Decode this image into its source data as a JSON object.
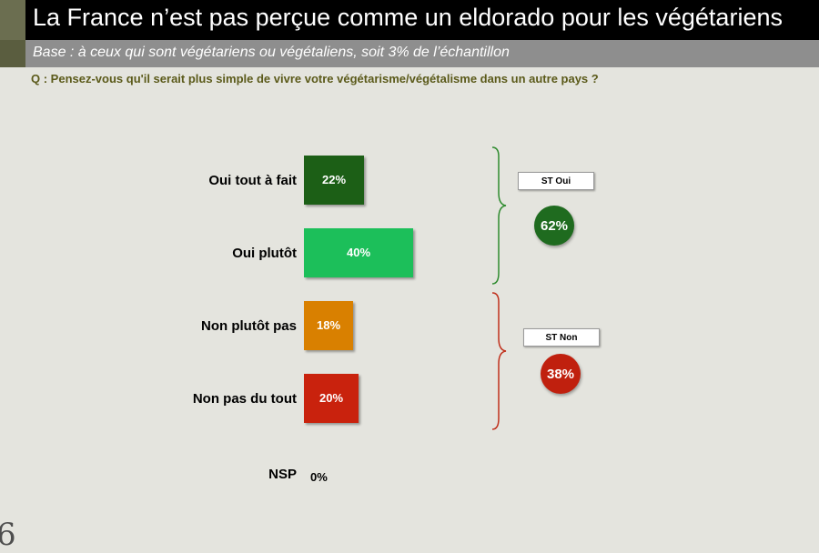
{
  "header": {
    "title": "La France n’est pas perçue comme un eldorado pour les végétariens",
    "base": "Base : à ceux qui sont végétariens ou végétaliens, soit 3% de l’échantillon",
    "question": "Q : Pensez-vous qu'il serait plus simple de vivre votre végétarisme/végétalisme dans un autre pays ?"
  },
  "chart_data": {
    "type": "bar",
    "orientation": "horizontal",
    "categories": [
      "Oui tout à fait",
      "Oui plutôt",
      "Non plutôt pas",
      "Non pas du tout",
      "NSP"
    ],
    "values": [
      22,
      40,
      18,
      20,
      0
    ],
    "value_labels": [
      "22%",
      "40%",
      "18%",
      "20%",
      "0%"
    ],
    "colors": [
      "#1d5e18",
      "#1fbf5a",
      "#d98000",
      "#c9200f",
      "#e4e4de"
    ],
    "subtotals": [
      {
        "label": "ST Oui",
        "value": 62,
        "value_label": "62%",
        "color": "#1f6b1f",
        "groups": [
          "Oui tout à fait",
          "Oui plutôt"
        ]
      },
      {
        "label": "ST Non",
        "value": 38,
        "value_label": "38%",
        "color": "#c0200e",
        "groups": [
          "Non plutôt pas",
          "Non pas du tout"
        ]
      }
    ]
  },
  "corner_mark": "6"
}
